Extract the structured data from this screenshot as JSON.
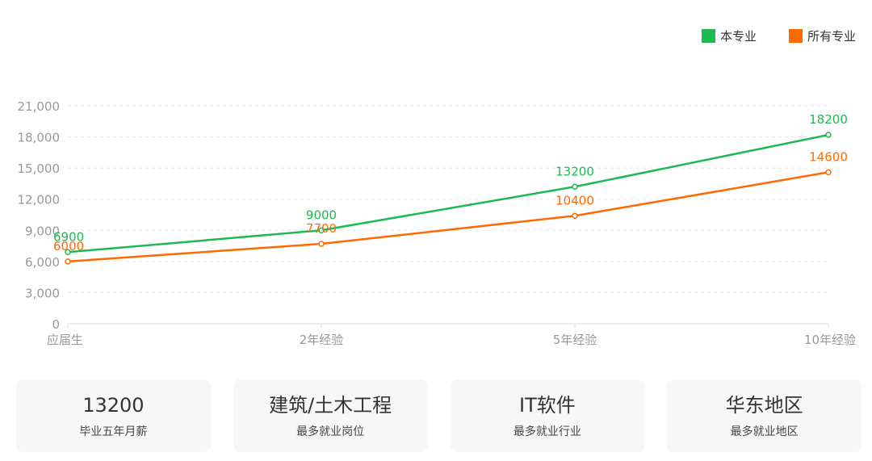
{
  "chart_data": {
    "type": "line",
    "categories": [
      "应届生",
      "2年经验",
      "5年经验",
      "10年经验"
    ],
    "series": [
      {
        "name": "本专业",
        "values": [
          6900,
          9000,
          13200,
          18200
        ],
        "color": "#1db954"
      },
      {
        "name": "所有专业",
        "values": [
          6000,
          7700,
          10400,
          14600
        ],
        "color": "#ff6a00"
      }
    ],
    "yticks": [
      0,
      3000,
      6000,
      9000,
      12000,
      15000,
      18000,
      21000
    ],
    "ytick_labels": [
      "0",
      "3,000",
      "6,000",
      "9,000",
      "12,000",
      "15,000",
      "18,000",
      "21,000"
    ],
    "ylim": [
      0,
      21000
    ],
    "grid": true,
    "legend_position": "top-right"
  },
  "cards": [
    {
      "value": "13200",
      "label": "毕业五年月薪"
    },
    {
      "value": "建筑/土木工程",
      "label": "最多就业岗位"
    },
    {
      "value": "IT软件",
      "label": "最多就业行业"
    },
    {
      "value": "华东地区",
      "label": "最多就业地区"
    }
  ]
}
